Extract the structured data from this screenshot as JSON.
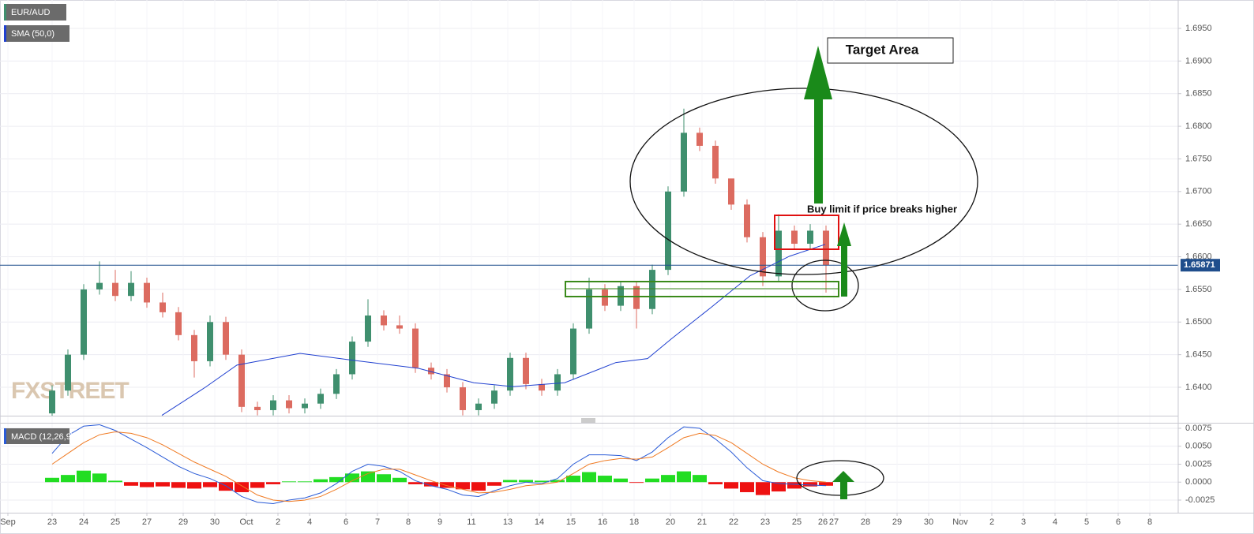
{
  "chart_data": [
    {
      "type": "candlestick",
      "title": "EUR/AUD",
      "watermark": "FXSTREET",
      "up_color": "#3f8f6e",
      "down_color": "#dc6b60",
      "candles": {
        "x": [
          0,
          0.5,
          1,
          1.5,
          2,
          2.5,
          3,
          3.5,
          4,
          4.5,
          5,
          5.5,
          6,
          6.5,
          7,
          7.5,
          8,
          8.5,
          9,
          9.5,
          10,
          10.5,
          11,
          11.5,
          12,
          12.5,
          13,
          13.5,
          14,
          14.5,
          15,
          15.5,
          16,
          16.5,
          17,
          17.5,
          18,
          18.5,
          19,
          19.5,
          20,
          20.5,
          21,
          21.5,
          22,
          22.5,
          23,
          23.5,
          24,
          24.5
        ],
        "open": [
          1.636,
          1.6395,
          1.645,
          1.655,
          1.656,
          1.654,
          1.656,
          1.653,
          1.6515,
          1.648,
          1.644,
          1.65,
          1.645,
          1.637,
          1.6365,
          1.638,
          1.6368,
          1.6375,
          1.639,
          1.642,
          1.647,
          1.651,
          1.6495,
          1.649,
          1.643,
          1.642,
          1.64,
          1.6365,
          1.6375,
          1.6395,
          1.6445,
          1.6405,
          1.6395,
          1.642,
          1.649,
          1.655,
          1.6525,
          1.6555,
          1.652,
          1.658,
          1.67,
          1.679,
          1.677,
          1.672,
          1.668,
          1.663,
          1.657,
          1.664,
          1.662,
          1.664
        ],
        "high": [
          1.6403,
          1.6458,
          1.6558,
          1.6593,
          1.658,
          1.6578,
          1.6568,
          1.6545,
          1.6523,
          1.6488,
          1.651,
          1.6508,
          1.6458,
          1.6378,
          1.6388,
          1.6388,
          1.6383,
          1.6398,
          1.6428,
          1.6478,
          1.6535,
          1.6518,
          1.651,
          1.6498,
          1.6438,
          1.6428,
          1.6408,
          1.6383,
          1.6403,
          1.6453,
          1.6453,
          1.6413,
          1.6428,
          1.6498,
          1.6568,
          1.6558,
          1.6563,
          1.6563,
          1.6588,
          1.6708,
          1.6827,
          1.6798,
          1.6778,
          1.671,
          1.6688,
          1.6638,
          1.6665,
          1.6648,
          1.665,
          1.6648
        ],
        "low": [
          1.6355,
          1.6387,
          1.6442,
          1.6542,
          1.6532,
          1.6532,
          1.6522,
          1.6507,
          1.6472,
          1.6415,
          1.6432,
          1.6442,
          1.6362,
          1.6357,
          1.6357,
          1.636,
          1.636,
          1.6367,
          1.6382,
          1.6412,
          1.6462,
          1.6487,
          1.6482,
          1.6422,
          1.6412,
          1.6392,
          1.6357,
          1.6357,
          1.6367,
          1.6387,
          1.6397,
          1.6387,
          1.6387,
          1.6412,
          1.6482,
          1.6517,
          1.6517,
          1.649,
          1.6512,
          1.6572,
          1.6692,
          1.6762,
          1.6712,
          1.6672,
          1.6622,
          1.6555,
          1.6562,
          1.6612,
          1.6612,
          1.6545
        ],
        "close": [
          1.6395,
          1.645,
          1.655,
          1.656,
          1.654,
          1.656,
          1.653,
          1.6515,
          1.648,
          1.644,
          1.65,
          1.645,
          1.637,
          1.6365,
          1.638,
          1.6368,
          1.6375,
          1.639,
          1.642,
          1.647,
          1.651,
          1.6495,
          1.649,
          1.643,
          1.642,
          1.64,
          1.6365,
          1.6375,
          1.6395,
          1.6445,
          1.6405,
          1.6395,
          1.642,
          1.649,
          1.655,
          1.6525,
          1.6555,
          1.652,
          1.658,
          1.67,
          1.679,
          1.677,
          1.672,
          1.668,
          1.663,
          1.657,
          1.664,
          1.662,
          1.664,
          1.6587
        ]
      },
      "sma": {
        "name": "SMA (50,0)",
        "color": "#2040d0",
        "x": [
          3.475,
          4.85,
          5.85,
          7.85,
          9.6,
          11.6,
          13.35,
          14.6,
          16.225,
          17.85,
          18.85,
          19.6,
          20.85,
          22.1,
          23.35,
          24.475
        ],
        "values": [
          1.6357,
          1.64,
          1.6434,
          1.6452,
          1.6441,
          1.6429,
          1.6407,
          1.6401,
          1.6407,
          1.6438,
          1.6444,
          1.6474,
          1.6522,
          1.6571,
          1.6601,
          1.6619
        ]
      },
      "current_price": 1.65871,
      "current_price_color": "#1f4e8c",
      "annotations": {
        "target": "Target Area",
        "buy": "Buy limit if price breaks higher"
      },
      "xlim": [
        -1.65,
        35.65
      ],
      "ylim": [
        1.63565,
        1.69935
      ],
      "grid": true,
      "yticks": [
        {
          "value": 1.64,
          "label": "1.6400"
        },
        {
          "value": 1.645,
          "label": "1.6450"
        },
        {
          "value": 1.65,
          "label": "1.6500"
        },
        {
          "value": 1.655,
          "label": "1.6550"
        },
        {
          "value": 1.66,
          "label": "1.6600"
        },
        {
          "value": 1.665,
          "label": "1.6650"
        },
        {
          "value": 1.67,
          "label": "1.6700"
        },
        {
          "value": 1.675,
          "label": "1.6750"
        },
        {
          "value": 1.68,
          "label": "1.6800"
        },
        {
          "value": 1.685,
          "label": "1.6850"
        },
        {
          "value": 1.69,
          "label": "1.6900"
        },
        {
          "value": 1.695,
          "label": "1.6950"
        }
      ]
    },
    {
      "type": "macd",
      "title": "MACD (12,26,9)",
      "x": [
        0,
        0.5,
        1,
        1.5,
        2,
        2.5,
        3,
        3.5,
        4,
        4.5,
        5,
        5.5,
        6,
        6.5,
        7,
        7.5,
        8,
        8.5,
        9,
        9.5,
        10,
        10.5,
        11,
        11.5,
        12,
        12.5,
        13,
        13.5,
        14,
        14.5,
        15,
        15.5,
        16,
        16.5,
        17,
        17.5,
        18,
        18.5,
        19,
        19.5,
        20,
        20.5,
        21,
        21.5,
        22,
        22.5,
        23,
        23.5,
        24,
        24.5
      ],
      "histogram": {
        "up_color": "#22dd22",
        "down_color": "#ee1111",
        "values": [
          0.0006,
          0.001,
          0.0016,
          0.0012,
          0.0002,
          -0.0005,
          -0.0007,
          -0.0006,
          -0.0008,
          -0.0009,
          -0.0007,
          -0.0012,
          -0.0014,
          -0.0008,
          -0.0003,
          0.0001,
          0.0001,
          0.0004,
          0.0007,
          0.0012,
          0.0015,
          0.0011,
          0.0006,
          -0.0003,
          -0.0006,
          -0.0008,
          -0.001,
          -0.0012,
          -0.0005,
          0.0003,
          0.0003,
          0.0002,
          0.0003,
          0.0009,
          0.0014,
          0.0009,
          0.0005,
          -0.0001,
          0.0005,
          0.001,
          0.0015,
          0.001,
          -0.0003,
          -0.0009,
          -0.0014,
          -0.0018,
          -0.0013,
          -0.0009,
          -0.0006,
          -0.0005
        ]
      },
      "series": [
        {
          "color": "#2a5bd7",
          "values": [
            0.004,
            0.0065,
            0.0078,
            0.008,
            0.0072,
            0.006,
            0.0048,
            0.0035,
            0.0022,
            0.0012,
            0.0005,
            -0.0005,
            -0.002,
            -0.0028,
            -0.003,
            -0.0025,
            -0.0022,
            -0.0015,
            -0.0002,
            0.0015,
            0.0025,
            0.0022,
            0.0015,
            0.0002,
            -0.0005,
            -0.001,
            -0.0018,
            -0.002,
            -0.0012,
            -0.0005,
            0.0,
            -0.0002,
            0.0005,
            0.0025,
            0.0038,
            0.0038,
            0.0037,
            0.003,
            0.0042,
            0.0062,
            0.0077,
            0.0075,
            0.006,
            0.0042,
            0.002,
            0.0002,
            -0.0002,
            -0.0003,
            -0.0004,
            -0.0005
          ]
        },
        {
          "color": "#f07a22",
          "values": [
            0.0025,
            0.004,
            0.0055,
            0.0066,
            0.007,
            0.0068,
            0.0062,
            0.0052,
            0.004,
            0.0028,
            0.0018,
            0.0008,
            -0.0005,
            -0.0018,
            -0.0025,
            -0.0027,
            -0.0025,
            -0.002,
            -0.001,
            0.0002,
            0.0012,
            0.0018,
            0.0018,
            0.001,
            0.0002,
            -0.0005,
            -0.001,
            -0.0015,
            -0.0014,
            -0.001,
            -0.0005,
            -0.0003,
            0.0,
            0.0012,
            0.0025,
            0.003,
            0.0033,
            0.0032,
            0.0035,
            0.0048,
            0.0062,
            0.0068,
            0.0065,
            0.0055,
            0.004,
            0.0025,
            0.0014,
            0.0006,
            0.0002,
            0.0
          ]
        }
      ],
      "xlim": [
        -1.65,
        35.65
      ],
      "ylim": [
        -0.00426,
        0.00816
      ],
      "yticks": [
        {
          "value": -0.0025,
          "label": "-0.0025"
        },
        {
          "value": 0,
          "label": "0.0000"
        },
        {
          "value": 0.0025,
          "label": "0.0025"
        },
        {
          "value": 0.005,
          "label": "0.0050"
        },
        {
          "value": 0.0075,
          "label": "0.0075"
        }
      ],
      "xticks": [
        {
          "value": -1.4,
          "label": "Sep"
        },
        {
          "value": 0,
          "label": "23"
        },
        {
          "value": 1,
          "label": "24"
        },
        {
          "value": 2,
          "label": "25"
        },
        {
          "value": 3,
          "label": "27"
        },
        {
          "value": 4.15,
          "label": "29"
        },
        {
          "value": 5.15,
          "label": "30"
        },
        {
          "value": 6.15,
          "label": "Oct"
        },
        {
          "value": 7.15,
          "label": "2"
        },
        {
          "value": 8.15,
          "label": "4"
        },
        {
          "value": 9.3,
          "label": "6"
        },
        {
          "value": 10.3,
          "label": "7"
        },
        {
          "value": 11.275,
          "label": "8"
        },
        {
          "value": 12.275,
          "label": "9"
        },
        {
          "value": 13.275,
          "label": "11"
        },
        {
          "value": 14.425,
          "label": "13"
        },
        {
          "value": 15.425,
          "label": "14"
        },
        {
          "value": 16.425,
          "label": "15"
        },
        {
          "value": 17.425,
          "label": "16"
        },
        {
          "value": 18.425,
          "label": "18"
        },
        {
          "value": 19.575,
          "label": "20"
        },
        {
          "value": 20.575,
          "label": "21"
        },
        {
          "value": 21.575,
          "label": "22"
        },
        {
          "value": 22.575,
          "label": "23"
        },
        {
          "value": 23.575,
          "label": "25"
        },
        {
          "value": 24.4,
          "label": "26"
        },
        {
          "value": 24.75,
          "label": "27"
        },
        {
          "value": 25.75,
          "label": "28"
        },
        {
          "value": 26.75,
          "label": "29"
        },
        {
          "value": 27.75,
          "label": "30"
        },
        {
          "value": 28.75,
          "label": "Nov"
        },
        {
          "value": 29.75,
          "label": "2"
        },
        {
          "value": 30.75,
          "label": "3"
        },
        {
          "value": 31.75,
          "label": "4"
        },
        {
          "value": 32.75,
          "label": "5"
        },
        {
          "value": 33.75,
          "label": "6"
        },
        {
          "value": 34.75,
          "label": "8"
        }
      ]
    }
  ]
}
